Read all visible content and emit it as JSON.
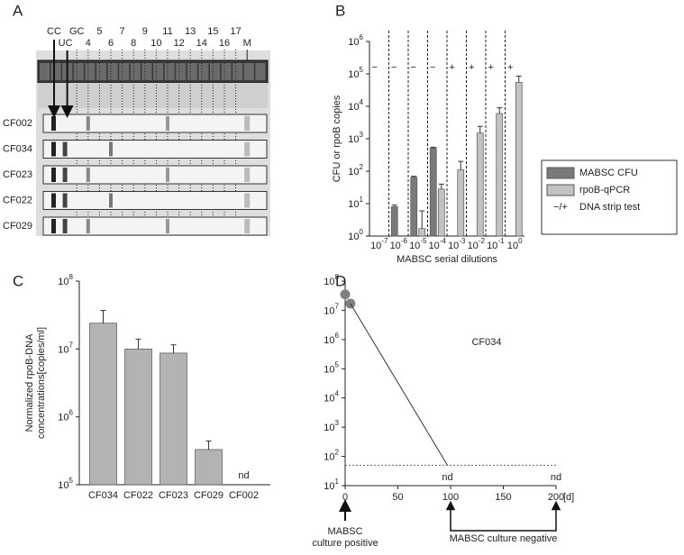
{
  "strip_figure": {
    "panel_label": "A",
    "lane_labels": [
      "CC",
      "UC",
      "GC",
      "4",
      "5",
      "6",
      "7",
      "8",
      "9",
      "10",
      "11",
      "12",
      "13",
      "14",
      "15",
      "16",
      "17",
      "M"
    ],
    "samples": [
      "CF002",
      "CF034",
      "CF023",
      "CF022",
      "CF029"
    ]
  },
  "chart_data": [
    {
      "type": "bar",
      "panel_label": "B",
      "log_y": true,
      "categories": [
        {
          "label": "10",
          "exponent": "-7"
        },
        {
          "label": "10",
          "exponent": "-6"
        },
        {
          "label": "10",
          "exponent": "-5"
        },
        {
          "label": "10",
          "exponent": "-4"
        },
        {
          "label": "10",
          "exponent": "-3"
        },
        {
          "label": "10",
          "exponent": "-2"
        },
        {
          "label": "10",
          "exponent": "-1"
        },
        {
          "label": "10",
          "exponent": "0"
        }
      ],
      "series": [
        {
          "name": "MABSC CFU",
          "color": "#7a7a7a",
          "values": [
            null,
            8,
            65,
            520,
            null,
            null,
            null,
            null
          ],
          "errors": [
            null,
            1,
            5,
            30,
            null,
            null,
            null,
            null
          ]
        },
        {
          "name": "rpoB-qPCR",
          "color": "#c2c2c2",
          "values": [
            null,
            null,
            1.7,
            28,
            110,
            1500,
            6000,
            55000
          ],
          "errors": [
            null,
            null,
            4.3,
            12,
            90,
            900,
            3000,
            30000
          ]
        }
      ],
      "strip_test": [
        "−",
        "−",
        "−",
        "−",
        "+",
        "+",
        "+",
        "+"
      ],
      "strip_test_legend": {
        "symbol": "−/+",
        "label": "DNA strip test"
      },
      "ylabel": "CFU or rpoB copies",
      "xlabel": "MABSC serial dilutions",
      "ylim": [
        1,
        1000000
      ],
      "yticks": [
        {
          "value": 1,
          "label": "10",
          "exponent": "0"
        },
        {
          "value": 10,
          "label": "10",
          "exponent": "1"
        },
        {
          "value": 100,
          "label": "10",
          "exponent": "2"
        },
        {
          "value": 1000,
          "label": "10",
          "exponent": "3"
        },
        {
          "value": 10000,
          "label": "10",
          "exponent": "4"
        },
        {
          "value": 100000,
          "label": "10",
          "exponent": "5"
        },
        {
          "value": 1000000,
          "label": "10",
          "exponent": "6"
        }
      ],
      "legend": "right"
    },
    {
      "type": "bar",
      "panel_label": "C",
      "log_y": true,
      "categories": [
        "CF034",
        "CF022",
        "CF023",
        "CF029",
        "CF002"
      ],
      "values": [
        24000000,
        10000000,
        8700000,
        330000,
        null
      ],
      "errors": [
        13000000,
        4000000,
        2800000,
        110000,
        null
      ],
      "value_labels": [
        null,
        null,
        null,
        null,
        "nd"
      ],
      "color": "#b3b3b3",
      "ylabel": [
        "Normalized rpoB-DNA",
        "concentrations[copies/ml]"
      ],
      "ylim": [
        100000,
        100000000
      ],
      "yticks": [
        {
          "value": 100000,
          "label": "10",
          "exponent": "5"
        },
        {
          "value": 1000000,
          "label": "10",
          "exponent": "6"
        },
        {
          "value": 10000000,
          "label": "10",
          "exponent": "7"
        },
        {
          "value": 100000000,
          "label": "10",
          "exponent": "8"
        }
      ]
    },
    {
      "type": "line",
      "panel_label": "D",
      "log_y": true,
      "series": [
        {
          "x": [
            0,
            5
          ],
          "y": [
            35000000,
            17000000
          ],
          "color": "#808080",
          "markers": true
        },
        {
          "x": [
            5,
            97
          ],
          "y": [
            17000000,
            50
          ],
          "color": "#333333",
          "markers": false
        }
      ],
      "annotation": "CF034",
      "detection_limit": 50,
      "nd_labels": [
        {
          "x": 97,
          "label": "nd"
        },
        {
          "x": 200,
          "label": "nd"
        }
      ],
      "xunit": "[d]",
      "events": {
        "positive": {
          "x": 0,
          "label": [
            "MABSC",
            "culture positive"
          ]
        },
        "negative": {
          "x": [
            100,
            200
          ],
          "label": "MABSC culture negative"
        }
      },
      "xlim": [
        0,
        200
      ],
      "xticks": [
        0,
        50,
        100,
        150,
        200
      ],
      "ylim": [
        10,
        100000000
      ],
      "yticks": [
        {
          "value": 10,
          "label": "10",
          "exponent": "1"
        },
        {
          "value": 100,
          "label": "10",
          "exponent": "2"
        },
        {
          "value": 1000,
          "label": "10",
          "exponent": "3"
        },
        {
          "value": 10000,
          "label": "10",
          "exponent": "4"
        },
        {
          "value": 100000,
          "label": "10",
          "exponent": "5"
        },
        {
          "value": 1000000,
          "label": "10",
          "exponent": "6"
        },
        {
          "value": 10000000,
          "label": "10",
          "exponent": "7"
        },
        {
          "value": 100000000,
          "label": "10",
          "exponent": "8"
        }
      ]
    }
  ]
}
